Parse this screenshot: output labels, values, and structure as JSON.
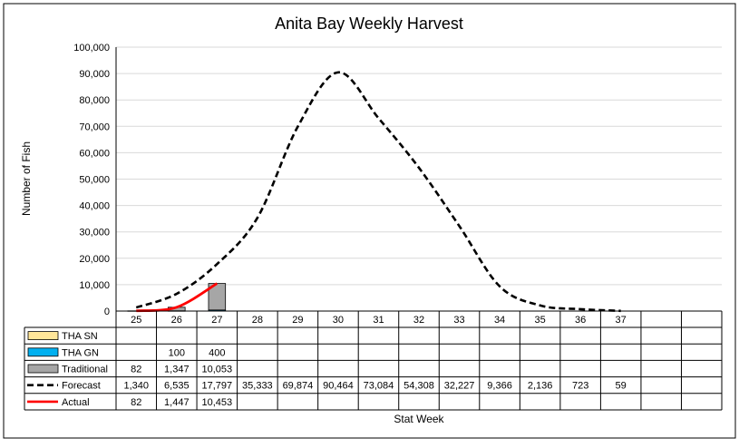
{
  "chart_data": {
    "type": "line",
    "title": "Anita Bay Weekly Harvest",
    "xlabel": "Stat Week",
    "ylabel": "Number of Fish",
    "ylim": [
      0,
      100000
    ],
    "y_ticks": [
      "0",
      "10,000",
      "20,000",
      "30,000",
      "40,000",
      "50,000",
      "60,000",
      "70,000",
      "80,000",
      "90,000",
      "100,000"
    ],
    "grid": true,
    "legend": "data-table-left",
    "categories": [
      "25",
      "26",
      "27",
      "28",
      "29",
      "30",
      "31",
      "32",
      "33",
      "34",
      "35",
      "36",
      "37",
      "",
      ""
    ],
    "series": [
      {
        "name": "THA SN",
        "type": "bar",
        "color": "#ffe699",
        "values": [
          null,
          null,
          null,
          null,
          null,
          null,
          null,
          null,
          null,
          null,
          null,
          null,
          null,
          null,
          null
        ],
        "labels": [
          "",
          "",
          "",
          "",
          "",
          "",
          "",
          "",
          "",
          "",
          "",
          "",
          "",
          "",
          ""
        ]
      },
      {
        "name": "THA GN",
        "type": "bar",
        "color": "#00b0f0",
        "values": [
          null,
          100,
          400,
          null,
          null,
          null,
          null,
          null,
          null,
          null,
          null,
          null,
          null,
          null,
          null
        ],
        "labels": [
          "",
          "100",
          "400",
          "",
          "",
          "",
          "",
          "",
          "",
          "",
          "",
          "",
          "",
          "",
          ""
        ]
      },
      {
        "name": "Traditional",
        "type": "bar",
        "color": "#a6a6a6",
        "values": [
          82,
          1347,
          10053,
          null,
          null,
          null,
          null,
          null,
          null,
          null,
          null,
          null,
          null,
          null,
          null
        ],
        "labels": [
          "82",
          "1,347",
          "10,053",
          "",
          "",
          "",
          "",
          "",
          "",
          "",
          "",
          "",
          "",
          "",
          ""
        ]
      },
      {
        "name": "Forecast",
        "type": "line",
        "style": "dashed",
        "color": "#000000",
        "values": [
          1340,
          6535,
          17797,
          35333,
          69874,
          90464,
          73084,
          54308,
          32227,
          9366,
          2136,
          723,
          59,
          null,
          null
        ],
        "labels": [
          "1,340",
          "6,535",
          "17,797",
          "35,333",
          "69,874",
          "90,464",
          "73,084",
          "54,308",
          "32,227",
          "9,366",
          "2,136",
          "723",
          "59",
          "",
          ""
        ]
      },
      {
        "name": "Actual",
        "type": "line",
        "style": "solid",
        "color": "#ff0000",
        "values": [
          82,
          1447,
          10453,
          null,
          null,
          null,
          null,
          null,
          null,
          null,
          null,
          null,
          null,
          null,
          null
        ],
        "labels": [
          "82",
          "1,447",
          "10,453",
          "",
          "",
          "",
          "",
          "",
          "",
          "",
          "",
          "",
          "",
          "",
          ""
        ]
      }
    ]
  }
}
